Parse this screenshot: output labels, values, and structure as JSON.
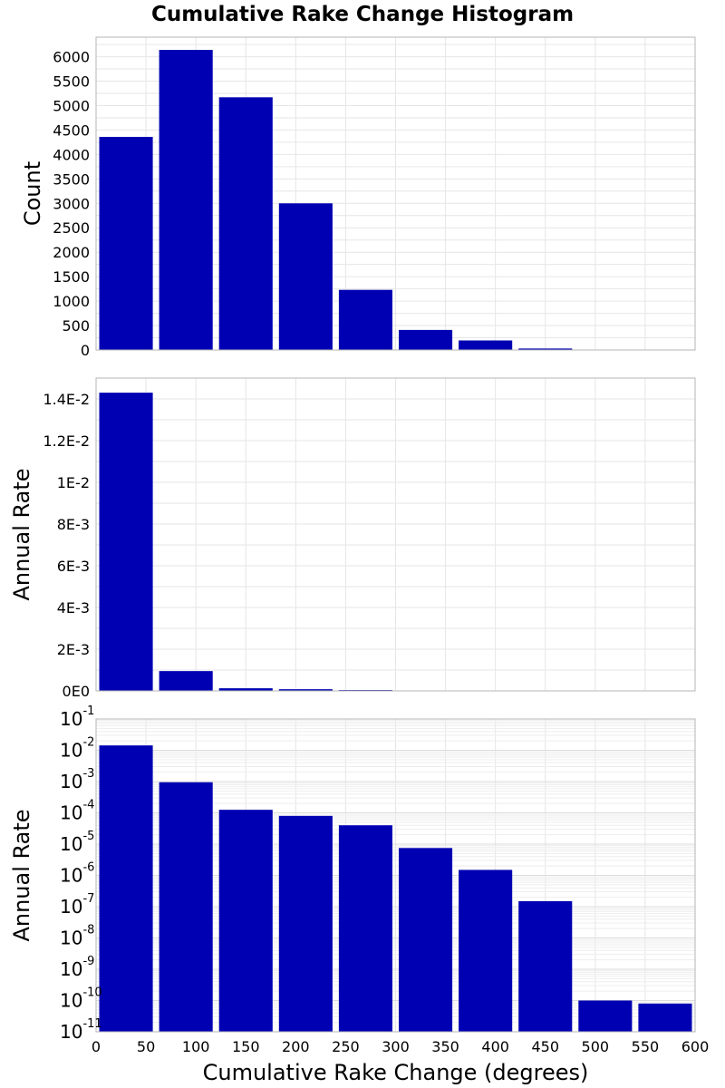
{
  "chart_data": [
    {
      "type": "bar",
      "panel": "top",
      "title": "Cumulative Rake Change Histogram",
      "ylabel": "Count",
      "xlabel": "",
      "x_bins": [
        [
          0,
          60
        ],
        [
          60,
          120
        ],
        [
          120,
          180
        ],
        [
          180,
          240
        ],
        [
          240,
          300
        ],
        [
          300,
          360
        ],
        [
          360,
          420
        ],
        [
          420,
          480
        ],
        [
          480,
          540
        ],
        [
          540,
          600
        ]
      ],
      "values": [
        4360,
        6140,
        5170,
        3000,
        1230,
        410,
        195,
        30,
        2,
        1
      ],
      "ylim": [
        0,
        6400
      ],
      "yticks": [
        0,
        500,
        1000,
        1500,
        2000,
        2500,
        3000,
        3500,
        4000,
        4500,
        5000,
        5500,
        6000
      ],
      "ytick_labels": [
        "0",
        "500",
        "1000",
        "1500",
        "2000",
        "2500",
        "3000",
        "3500",
        "4000",
        "4500",
        "5000",
        "5500",
        "6000"
      ],
      "grid": true,
      "bar_color": "#0000b3"
    },
    {
      "type": "bar",
      "panel": "middle",
      "ylabel": "Annual Rate",
      "x_bins": [
        [
          0,
          60
        ],
        [
          60,
          120
        ],
        [
          120,
          180
        ],
        [
          180,
          240
        ],
        [
          240,
          300
        ],
        [
          300,
          360
        ],
        [
          360,
          420
        ],
        [
          420,
          480
        ],
        [
          480,
          540
        ],
        [
          540,
          600
        ]
      ],
      "values": [
        0.0143,
        0.00095,
        0.000125,
        8e-05,
        4e-05,
        7.5e-06,
        1.5e-06,
        1.5e-07,
        1e-10,
        8e-11
      ],
      "ylim": [
        0,
        0.015
      ],
      "yticks": [
        0,
        0.002,
        0.004,
        0.006,
        0.008,
        0.01,
        0.012,
        0.014
      ],
      "ytick_labels": [
        "0E0",
        "2E-3",
        "4E-3",
        "6E-3",
        "8E-3",
        "1E-2",
        "1.2E-2",
        "1.4E-2"
      ],
      "grid": true,
      "bar_color": "#0000b3"
    },
    {
      "type": "bar",
      "panel": "bottom",
      "yscale": "log",
      "ylabel": "Annual Rate",
      "xlabel": "Cumulative Rake Change (degrees)",
      "x_bins": [
        [
          0,
          60
        ],
        [
          60,
          120
        ],
        [
          120,
          180
        ],
        [
          180,
          240
        ],
        [
          240,
          300
        ],
        [
          300,
          360
        ],
        [
          360,
          420
        ],
        [
          420,
          480
        ],
        [
          480,
          540
        ],
        [
          540,
          600
        ]
      ],
      "values": [
        0.0143,
        0.00095,
        0.000125,
        8e-05,
        4e-05,
        7.5e-06,
        1.5e-06,
        1.5e-07,
        1e-10,
        8e-11
      ],
      "ylim": [
        1e-11,
        0.1
      ],
      "ytick_exponents": [
        -1,
        -2,
        -3,
        -4,
        -5,
        -6,
        -7,
        -8,
        -9,
        -10,
        -11
      ],
      "ytick_base": "10",
      "xlim": [
        0,
        600
      ],
      "xticks": [
        0,
        50,
        100,
        150,
        200,
        250,
        300,
        350,
        400,
        450,
        500,
        550,
        600
      ],
      "xtick_labels": [
        "0",
        "50",
        "100",
        "150",
        "200",
        "250",
        "300",
        "350",
        "400",
        "450",
        "500",
        "550",
        "600"
      ],
      "grid": true,
      "bar_color": "#0000b3"
    }
  ]
}
